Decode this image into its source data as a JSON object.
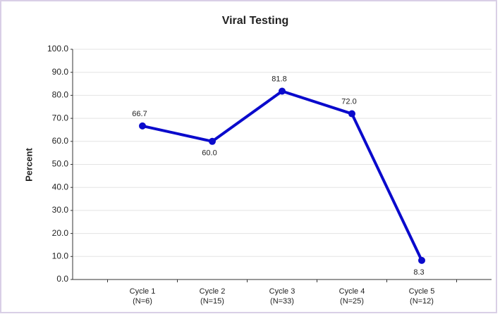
{
  "chart_data": {
    "type": "line",
    "title": "Viral Testing",
    "y_label": "Percent",
    "categories": [
      [
        "Cycle 1",
        "(N=6)"
      ],
      [
        "Cycle 2",
        "(N=15)"
      ],
      [
        "Cycle 3",
        "(N=33)"
      ],
      [
        "Cycle 4",
        "(N=25)"
      ],
      [
        "Cycle 5",
        "(N=12)"
      ]
    ],
    "series": [
      {
        "color": "#0a0acc",
        "values": [
          66.7,
          60,
          81.8,
          72,
          8.3
        ],
        "value_labels": [
          "66.7",
          "60.0",
          "81.8",
          "72.0",
          "8.3"
        ]
      }
    ],
    "ylim": [
      0,
      100
    ],
    "yticks": [
      {
        "value": 0,
        "label": "0.0"
      },
      {
        "value": 10,
        "label": "10.0"
      },
      {
        "value": 20,
        "label": "20.0"
      },
      {
        "value": 30,
        "label": "30.0"
      },
      {
        "value": 40,
        "label": "40.0"
      },
      {
        "value": 50,
        "label": "50.0"
      },
      {
        "value": 60,
        "label": "60.0"
      },
      {
        "value": 70,
        "label": "70.0"
      },
      {
        "value": 80,
        "label": "80.0"
      },
      {
        "value": 90,
        "label": "90.0"
      },
      {
        "value": 100,
        "label": "100.0"
      }
    ],
    "grid": true
  }
}
